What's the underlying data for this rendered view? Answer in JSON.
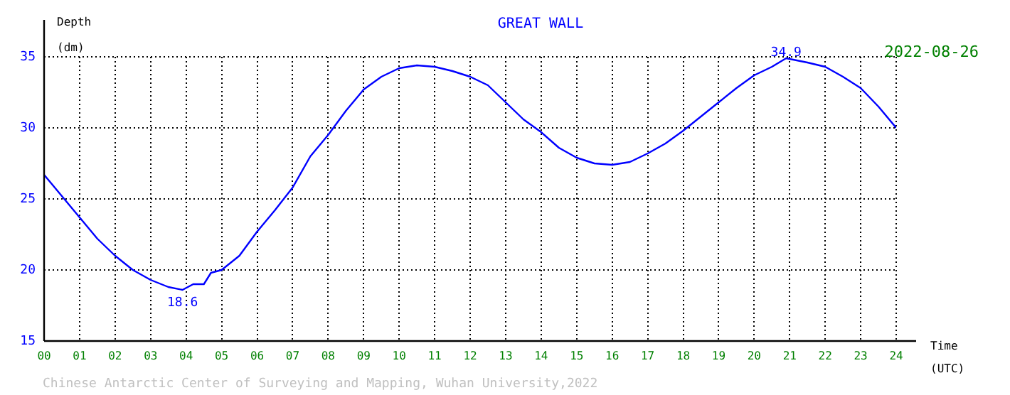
{
  "chart_data": {
    "type": "line",
    "title": "GREAT WALL",
    "subtitle": "2022-08-26",
    "xlabel": "Time (UTC)",
    "ylabel": "Depth (dm)",
    "x": [
      0,
      0.5,
      1,
      1.5,
      2,
      2.5,
      3,
      3.5,
      3.9,
      4.2,
      4.5,
      4.7,
      5,
      5.5,
      6,
      6.5,
      7,
      7.5,
      8,
      8.5,
      9,
      9.5,
      10,
      10.5,
      11,
      11.5,
      12,
      12.5,
      13,
      13.5,
      14,
      14.5,
      15,
      15.5,
      16,
      16.5,
      17,
      17.5,
      18,
      18.5,
      19,
      19.5,
      20,
      20.5,
      20.9,
      21.5,
      22,
      22.5,
      23,
      23.5,
      24
    ],
    "series": [
      {
        "color": "#0000ff",
        "values": [
          26.7,
          25.2,
          23.7,
          22.2,
          21.0,
          20.0,
          19.3,
          18.8,
          18.6,
          19.0,
          19.0,
          19.8,
          20.0,
          21.0,
          22.7,
          24.2,
          25.8,
          28.0,
          29.5,
          31.2,
          32.7,
          33.6,
          34.2,
          34.4,
          34.3,
          34.0,
          33.6,
          33.0,
          31.8,
          30.6,
          29.7,
          28.6,
          27.9,
          27.5,
          27.4,
          27.6,
          28.2,
          28.9,
          29.8,
          30.8,
          31.8,
          32.8,
          33.7,
          34.3,
          34.9,
          34.6,
          34.3,
          33.6,
          32.8,
          31.5,
          30.0
        ]
      }
    ],
    "xlim": [
      0,
      24
    ],
    "xticks": [
      {
        "value": 0,
        "label": "00"
      },
      {
        "value": 1,
        "label": "01"
      },
      {
        "value": 2,
        "label": "02"
      },
      {
        "value": 3,
        "label": "03"
      },
      {
        "value": 4,
        "label": "04"
      },
      {
        "value": 5,
        "label": "05"
      },
      {
        "value": 6,
        "label": "06"
      },
      {
        "value": 7,
        "label": "07"
      },
      {
        "value": 8,
        "label": "08"
      },
      {
        "value": 9,
        "label": "09"
      },
      10,
      11,
      12,
      13,
      14,
      15,
      16,
      17,
      18,
      19,
      20,
      21,
      22,
      23,
      24
    ],
    "ylim": [
      15,
      35
    ],
    "yticks": [
      15,
      20,
      25,
      30,
      35
    ],
    "grid": true,
    "legend": false,
    "marker": "none",
    "line_style": "solid",
    "annotations": [
      {
        "text": "18.6",
        "x": 3.9,
        "y": 18.6
      },
      {
        "text": "34.9",
        "x": 20.9,
        "y": 34.9
      },
      "Chinese Antarctic Center of Surveying and Mapping, Wuhan University,2022"
    ]
  }
}
